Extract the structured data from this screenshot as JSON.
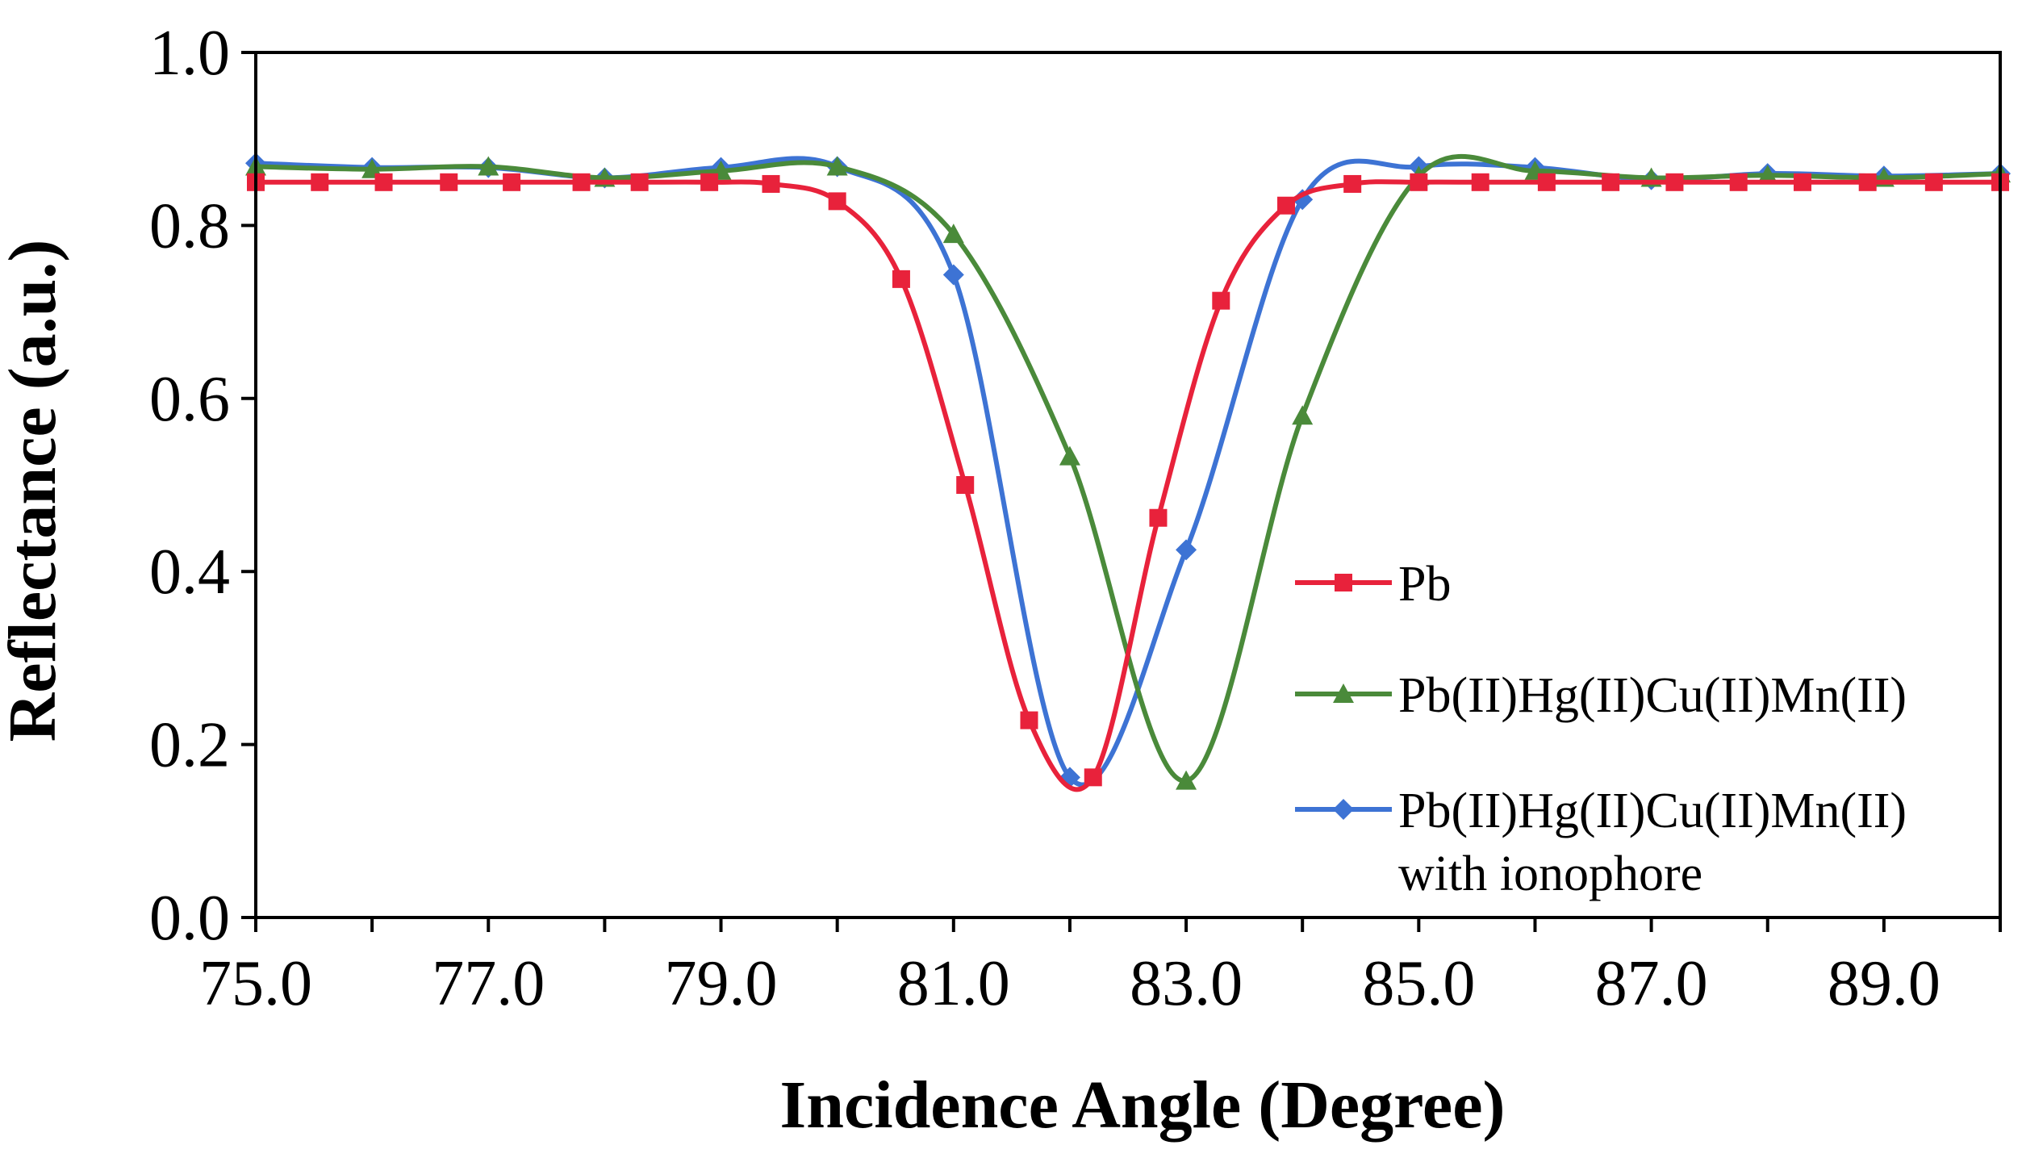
{
  "chart_data": {
    "type": "line",
    "title": "",
    "xlabel": "Incidence Angle (Degree)",
    "ylabel": "Reflectance (a.u.)",
    "xlim": [
      75.0,
      90.0
    ],
    "ylim": [
      0.0,
      1.0
    ],
    "x_ticks": [
      "75.0",
      "77.0",
      "79.0",
      "81.0",
      "83.0",
      "85.0",
      "87.0",
      "89.0"
    ],
    "x_tick_values": [
      75,
      77,
      79,
      81,
      83,
      85,
      87,
      89
    ],
    "y_ticks": [
      "0.0",
      "0.2",
      "0.4",
      "0.6",
      "0.8",
      "1.0"
    ],
    "y_tick_values": [
      0,
      0.2,
      0.4,
      0.6,
      0.8,
      1.0
    ],
    "grid": false,
    "legend_position": "right",
    "series": [
      {
        "name": "Pb",
        "color": "#E8223B",
        "marker": "square",
        "points": [
          [
            75.0,
            0.85
          ],
          [
            75.55,
            0.85
          ],
          [
            76.1,
            0.85
          ],
          [
            76.66,
            0.85
          ],
          [
            77.2,
            0.85
          ],
          [
            77.8,
            0.85
          ],
          [
            78.3,
            0.85
          ],
          [
            78.9,
            0.85
          ],
          [
            79.43,
            0.848
          ],
          [
            80.0,
            0.828
          ],
          [
            80.55,
            0.738
          ],
          [
            81.1,
            0.5
          ],
          [
            81.65,
            0.228
          ],
          [
            82.2,
            0.162
          ],
          [
            82.76,
            0.462
          ],
          [
            83.3,
            0.713
          ],
          [
            83.86,
            0.823
          ],
          [
            84.43,
            0.848
          ],
          [
            85.0,
            0.85
          ],
          [
            85.53,
            0.85
          ],
          [
            86.1,
            0.85
          ],
          [
            86.65,
            0.85
          ],
          [
            87.2,
            0.85
          ],
          [
            87.75,
            0.85
          ],
          [
            88.3,
            0.85
          ],
          [
            88.86,
            0.85
          ],
          [
            89.43,
            0.85
          ],
          [
            90.0,
            0.85
          ]
        ]
      },
      {
        "name": "Pb(II)Hg(II)Cu(II)Mn(II)",
        "color": "#4A8A3A",
        "marker": "triangle",
        "points": [
          [
            75.0,
            0.868
          ],
          [
            76.0,
            0.865
          ],
          [
            77.0,
            0.868
          ],
          [
            78.0,
            0.855
          ],
          [
            79.0,
            0.863
          ],
          [
            80.0,
            0.868
          ],
          [
            81.0,
            0.79
          ],
          [
            82.0,
            0.533
          ],
          [
            83.0,
            0.158
          ],
          [
            84.0,
            0.58
          ],
          [
            85.0,
            0.857
          ],
          [
            86.0,
            0.863
          ],
          [
            87.0,
            0.855
          ],
          [
            88.0,
            0.858
          ],
          [
            89.0,
            0.855
          ],
          [
            90.0,
            0.86
          ]
        ]
      },
      {
        "name": "Pb(II)Hg(II)Cu(II)Mn(II) with ionophore",
        "legend_lines": [
          "Pb(II)Hg(II)Cu(II)Mn(II)",
          "with ionophore"
        ],
        "color": "#3D73D4",
        "marker": "diamond",
        "points": [
          [
            75.0,
            0.872
          ],
          [
            76.0,
            0.867
          ],
          [
            77.0,
            0.867
          ],
          [
            78.0,
            0.855
          ],
          [
            79.0,
            0.867
          ],
          [
            80.0,
            0.868
          ],
          [
            81.0,
            0.743
          ],
          [
            82.0,
            0.162
          ],
          [
            83.0,
            0.425
          ],
          [
            84.0,
            0.83
          ],
          [
            85.0,
            0.868
          ],
          [
            86.0,
            0.867
          ],
          [
            87.0,
            0.853
          ],
          [
            88.0,
            0.86
          ],
          [
            89.0,
            0.857
          ],
          [
            90.0,
            0.86
          ]
        ]
      }
    ]
  }
}
